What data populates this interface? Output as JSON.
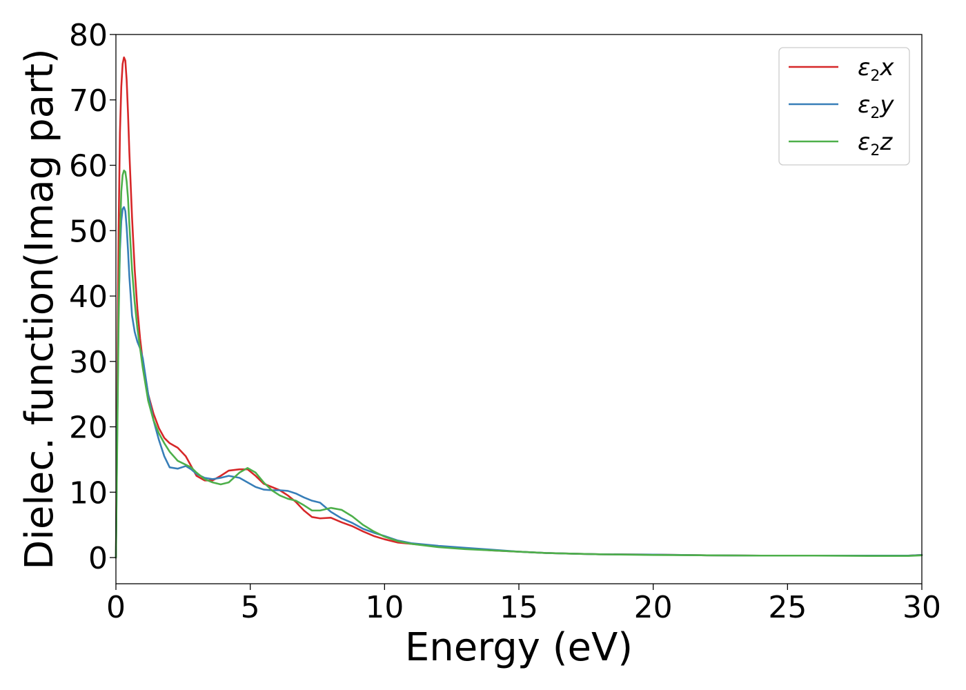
{
  "chart_data": {
    "type": "line",
    "title": "",
    "xlabel": "Energy (eV)",
    "ylabel": "Dielec. function(Imag part)",
    "xlim": [
      0,
      30
    ],
    "ylim": [
      -4,
      80
    ],
    "xticks": [
      0,
      5,
      10,
      15,
      20,
      25,
      30
    ],
    "yticks": [
      0,
      10,
      20,
      30,
      40,
      50,
      60,
      70,
      80
    ],
    "xtick_labels": [
      "0",
      "5",
      "10",
      "15",
      "20",
      "25",
      "30"
    ],
    "ytick_labels": [
      "0",
      "10",
      "20",
      "30",
      "40",
      "50",
      "60",
      "70",
      "80"
    ],
    "grid": false,
    "legend_position": "top-right",
    "series": [
      {
        "name": "ε2x",
        "name_base": "ε",
        "name_sub": "2",
        "name_tail": "x",
        "color": "#d62728",
        "x": [
          0,
          0.05,
          0.1,
          0.15,
          0.2,
          0.25,
          0.3,
          0.35,
          0.4,
          0.45,
          0.5,
          0.6,
          0.7,
          0.8,
          0.9,
          1.0,
          1.2,
          1.4,
          1.6,
          1.8,
          2.0,
          2.3,
          2.6,
          2.8,
          3.0,
          3.3,
          3.6,
          3.9,
          4.2,
          4.6,
          4.9,
          5.2,
          5.5,
          5.8,
          6.1,
          6.4,
          6.7,
          7.0,
          7.3,
          7.6,
          8.0,
          8.4,
          8.8,
          9.2,
          9.6,
          10.0,
          10.5,
          11.0,
          12.0,
          13.0,
          14.0,
          15.0,
          16.0,
          17.0,
          18.0,
          20.0,
          22.0,
          24.0,
          26.0,
          28.0,
          29.5,
          30.0
        ],
        "y": [
          0,
          25,
          50,
          65,
          72,
          75.5,
          76.5,
          76,
          73,
          68,
          62,
          52,
          44,
          38,
          33.5,
          30,
          25,
          22,
          19.8,
          18.3,
          17.5,
          16.8,
          15.5,
          14,
          12.5,
          11.8,
          11.8,
          12.5,
          13.3,
          13.5,
          13.5,
          12.5,
          11.3,
          10.8,
          10.3,
          9.5,
          8.5,
          7.2,
          6.2,
          6.0,
          6.1,
          5.4,
          4.8,
          4.0,
          3.3,
          2.8,
          2.3,
          2.1,
          1.7,
          1.4,
          1.1,
          0.9,
          0.7,
          0.6,
          0.5,
          0.45,
          0.35,
          0.3,
          0.3,
          0.3,
          0.3,
          0.4
        ]
      },
      {
        "name": "ε2y",
        "name_base": "ε",
        "name_sub": "2",
        "name_tail": "y",
        "color": "#377eb8",
        "x": [
          0,
          0.05,
          0.1,
          0.15,
          0.2,
          0.25,
          0.3,
          0.35,
          0.4,
          0.45,
          0.5,
          0.6,
          0.7,
          0.8,
          0.9,
          1.0,
          1.2,
          1.4,
          1.6,
          1.8,
          2.0,
          2.3,
          2.6,
          2.8,
          3.0,
          3.3,
          3.6,
          3.9,
          4.2,
          4.6,
          4.9,
          5.2,
          5.5,
          5.8,
          6.1,
          6.4,
          6.7,
          7.0,
          7.3,
          7.6,
          8.0,
          8.4,
          8.8,
          9.2,
          9.6,
          10.0,
          10.5,
          11.0,
          12.0,
          13.0,
          14.0,
          15.0,
          16.0,
          17.0,
          18.0,
          20.0,
          22.0,
          24.0,
          26.0,
          28.0,
          29.5,
          30.0
        ],
        "y": [
          0,
          20,
          38,
          47,
          51.5,
          53.3,
          53.6,
          53,
          50.5,
          47,
          43,
          37,
          34.5,
          33,
          32,
          30.5,
          25,
          21,
          18,
          15.5,
          13.8,
          13.6,
          14,
          13.5,
          12.8,
          12.2,
          12.0,
          12.2,
          12.5,
          12.2,
          11.5,
          10.8,
          10.4,
          10.3,
          10.3,
          10.2,
          9.8,
          9.2,
          8.7,
          8.4,
          7.0,
          6.0,
          5.3,
          4.4,
          3.8,
          3.3,
          2.6,
          2.2,
          1.8,
          1.5,
          1.2,
          0.9,
          0.7,
          0.6,
          0.5,
          0.45,
          0.35,
          0.3,
          0.3,
          0.3,
          0.3,
          0.4
        ]
      },
      {
        "name": "ε2z",
        "name_base": "ε",
        "name_sub": "2",
        "name_tail": "z",
        "color": "#4daf4a",
        "x": [
          0,
          0.05,
          0.1,
          0.15,
          0.2,
          0.25,
          0.3,
          0.35,
          0.4,
          0.45,
          0.5,
          0.6,
          0.7,
          0.8,
          0.9,
          1.0,
          1.2,
          1.4,
          1.6,
          1.8,
          2.0,
          2.3,
          2.6,
          2.8,
          3.0,
          3.3,
          3.6,
          3.9,
          4.2,
          4.6,
          4.9,
          5.2,
          5.5,
          5.8,
          6.1,
          6.4,
          6.7,
          7.0,
          7.3,
          7.6,
          8.0,
          8.4,
          8.8,
          9.2,
          9.6,
          10.0,
          10.5,
          11.0,
          12.0,
          13.0,
          14.0,
          15.0,
          16.0,
          17.0,
          18.0,
          20.0,
          22.0,
          24.0,
          26.0,
          28.0,
          29.5,
          30.0
        ],
        "y": [
          0,
          18,
          36,
          49,
          56,
          58.5,
          59.2,
          59,
          57.5,
          55,
          51,
          44,
          39,
          35,
          32,
          29,
          24,
          21,
          19,
          17.5,
          16.2,
          14.8,
          14.2,
          13.8,
          13.0,
          12.0,
          11.5,
          11.2,
          11.5,
          13.0,
          13.7,
          13.0,
          11.5,
          10.3,
          9.5,
          9.0,
          8.7,
          8.0,
          7.2,
          7.2,
          7.6,
          7.3,
          6.3,
          5.0,
          4.0,
          3.2,
          2.5,
          2.1,
          1.6,
          1.3,
          1.1,
          0.9,
          0.7,
          0.6,
          0.5,
          0.4,
          0.35,
          0.3,
          0.3,
          0.25,
          0.25,
          0.35
        ]
      }
    ]
  }
}
